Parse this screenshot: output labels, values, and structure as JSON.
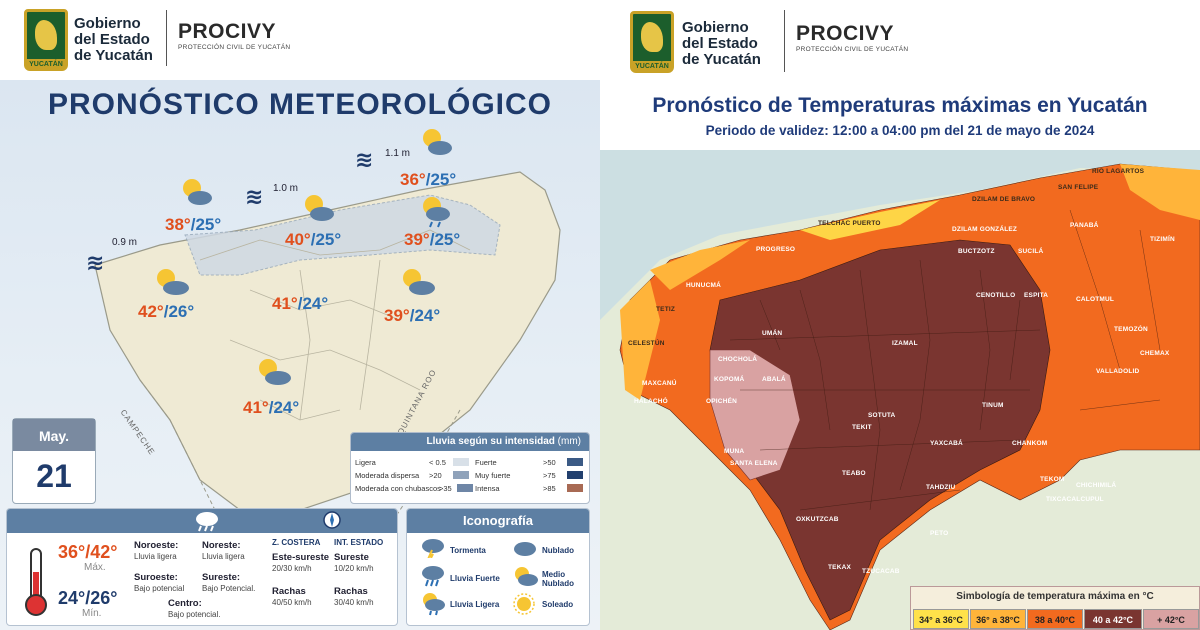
{
  "header": {
    "gov_line1": "Gobierno",
    "gov_line2": "del Estado",
    "gov_line3": "de Yucatán",
    "crest_text": "YUCATÁN",
    "agency": "PROCIVY",
    "agency_sub": "PROTECCIÓN CIVIL DE YUCATÁN"
  },
  "left": {
    "title": "PRONÓSTICO METEOROLÓGICO",
    "waves": [
      {
        "label": "0.9 m"
      },
      {
        "label": "1.0 m"
      },
      {
        "label": "1.1 m"
      }
    ],
    "temps": [
      {
        "max": "38°",
        "min": "/25°"
      },
      {
        "max": "40°",
        "min": "/25°"
      },
      {
        "max": "36°",
        "min": "/25°"
      },
      {
        "max": "39°",
        "min": "/25°"
      },
      {
        "max": "42°",
        "min": "/26°"
      },
      {
        "max": "41°",
        "min": "/24°"
      },
      {
        "max": "39°",
        "min": "/24°"
      },
      {
        "max": "41°",
        "min": "/24°"
      }
    ],
    "state_campeche": "CAMPECHE",
    "state_qroo": "QUINTANA ROO",
    "date": {
      "month": "May.",
      "day": "21"
    },
    "rain_legend": {
      "title": "Lluvia según su intensidad",
      "unit": "(mm)",
      "rows": [
        {
          "label": "Ligera",
          "range": "< 0.5",
          "color": "#d8e0e8"
        },
        {
          "label": "Moderada dispersa",
          "range": ">20",
          "color": "#8fa2ba"
        },
        {
          "label": "Moderada con chubascos",
          "range": ">35",
          "color": "#6e86a6"
        },
        {
          "label": "Fuerte",
          "range": ">50",
          "color": "#3b5a85"
        },
        {
          "label": "Muy fuerte",
          "range": ">75",
          "color": "#22406e"
        },
        {
          "label": "Intensa",
          "range": ">85",
          "color": "#a86a54"
        }
      ]
    },
    "summary": {
      "temp_range": "36°/42°",
      "max_label": "Máx.",
      "min_range": "24°/26°",
      "min_label": "Mín.",
      "regions": [
        {
          "name": "Noroeste:",
          "desc": "Lluvia ligera"
        },
        {
          "name": "Noreste:",
          "desc": "Lluvia ligera"
        },
        {
          "name": "Suroeste:",
          "desc": "Bajo potencial"
        },
        {
          "name": "Sureste:",
          "desc": "Bajo Potencial."
        },
        {
          "name": "Centro:",
          "desc": "Bajo potencial."
        }
      ],
      "wind": {
        "coast_header": "Z. COSTERA",
        "state_header": "INT. ESTADO",
        "coast_dir": "Este-sureste",
        "coast_speed": "20/30 km/h",
        "state_dir": "Sureste",
        "state_speed": "10/20 km/h",
        "gust_label": "Rachas",
        "coast_gust": "40/50 km/h",
        "state_gust": "30/40 km/h"
      }
    },
    "iconography": {
      "title": "Iconografía",
      "items": [
        {
          "label": "Tormenta",
          "icon": "storm-icon"
        },
        {
          "label": "Nublado",
          "icon": "cloud-icon"
        },
        {
          "label": "Lluvia Fuerte",
          "icon": "heavy-rain-icon"
        },
        {
          "label": "Medio Nublado",
          "icon": "partly-cloudy-icon"
        },
        {
          "label": "Lluvia Ligera",
          "icon": "light-rain-icon"
        },
        {
          "label": "Soleado",
          "icon": "sun-icon"
        }
      ]
    }
  },
  "right": {
    "title": "Pronóstico de Temperaturas máximas en Yucatán",
    "subtitle": "Periodo de validez: 12:00 a 04:00 pm del 21 de mayo de 2024",
    "municipalities": [
      "RIO LAGARTOS",
      "SAN FELIPE",
      "DZILAM DE BRAVO",
      "TELCHAC PUERTO",
      "DZILAM GONZÁLEZ",
      "PANABÁ",
      "TIZIMÍN",
      "PROGRESO",
      "BUCTZOTZ",
      "SUCILÁ",
      "HUNUCMÁ",
      "CENOTILLO",
      "ESPITA",
      "CALOTMUL",
      "TETIZ",
      "TEMOZÓN",
      "UMÁN",
      "IZAMAL",
      "CELESTÚN",
      "CHEMAX",
      "VALLADOLID",
      "CHOCHOLÁ",
      "MAXCANÚ",
      "KOPOMÁ",
      "ABALÁ",
      "OPICHÉN",
      "HALACHÓ",
      "SOTUTA",
      "TEKIT",
      "TINUM",
      "MUNA",
      "YAXCABÁ",
      "CHANKOM",
      "TEKOM",
      "CHICHIMILÁ",
      "TEABO",
      "SANTA ELENA",
      "TAHDZIU",
      "TIXCACALCUPUL",
      "OXKUTZCAB",
      "PETO",
      "TEKAX",
      "TZUCACAB"
    ],
    "scale": {
      "title": "Simbología de temperatura máxima en °C",
      "bins": [
        {
          "label": "34° a 36°C",
          "color": "#ffe14a"
        },
        {
          "label": "36° a 38°C",
          "color": "#ffb43a"
        },
        {
          "label": "38 a 40°C",
          "color": "#f26a1f"
        },
        {
          "label": "40 a 42°C",
          "color": "#7a3530"
        },
        {
          "label": "+ 42°C",
          "color": "#d9a2a2"
        }
      ]
    }
  }
}
